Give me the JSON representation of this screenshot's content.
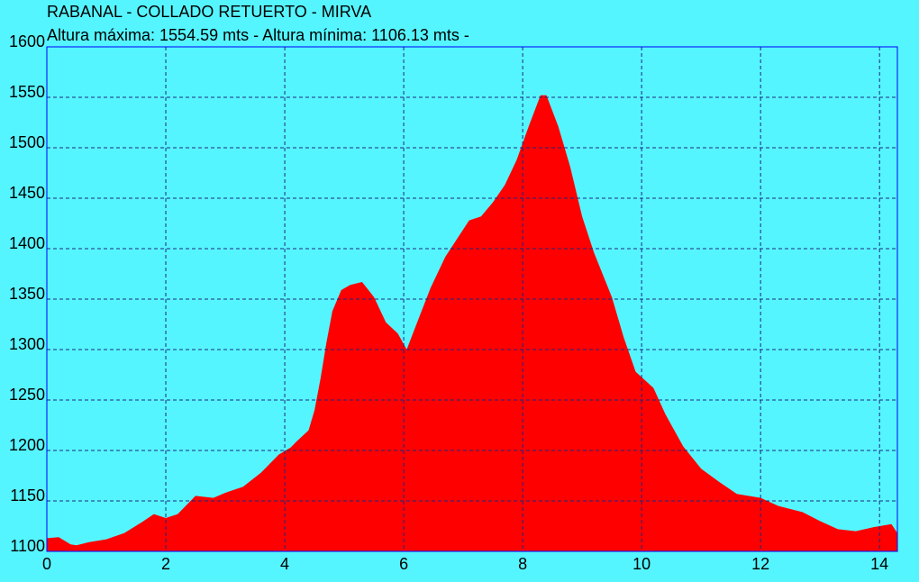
{
  "chart_data": {
    "type": "area",
    "title": "RABANAL - COLLADO RETUERTO - MIRVA",
    "subtitle": "Altura máxima: 1554.59 mts - Altura mínima: 1106.13 mts -",
    "x": [
      0,
      0.2,
      0.4,
      0.5,
      0.7,
      1.0,
      1.3,
      1.6,
      1.8,
      2.0,
      2.2,
      2.5,
      2.8,
      3.0,
      3.3,
      3.6,
      3.9,
      4.1,
      4.2,
      4.4,
      4.5,
      4.6,
      4.7,
      4.8,
      4.95,
      5.1,
      5.3,
      5.5,
      5.7,
      5.9,
      6.05,
      6.2,
      6.45,
      6.7,
      6.9,
      7.1,
      7.3,
      7.5,
      7.7,
      7.9,
      8.1,
      8.3,
      8.4,
      8.6,
      8.8,
      9.0,
      9.2,
      9.5,
      9.7,
      9.9,
      10.2,
      10.4,
      10.7,
      11.0,
      11.3,
      11.6,
      12.0,
      12.3,
      12.7,
      13.0,
      13.3,
      13.6,
      13.9,
      14.2,
      14.3
    ],
    "values": [
      1113,
      1114,
      1107,
      1106,
      1109,
      1112,
      1118,
      1129,
      1137,
      1133,
      1137,
      1155,
      1153,
      1158,
      1164,
      1178,
      1196,
      1203,
      1209,
      1220,
      1240,
      1271,
      1307,
      1338,
      1359,
      1364,
      1367,
      1352,
      1327,
      1316,
      1300,
      1323,
      1361,
      1392,
      1410,
      1428,
      1432,
      1446,
      1463,
      1488,
      1521,
      1552,
      1552,
      1521,
      1481,
      1432,
      1396,
      1352,
      1312,
      1278,
      1262,
      1236,
      1204,
      1182,
      1169,
      1157,
      1153,
      1145,
      1139,
      1130,
      1122,
      1120,
      1124,
      1127,
      1118
    ],
    "color": "#ff0000",
    "background": "#55f5ff",
    "xlim": [
      0,
      14.3
    ],
    "xticks": [
      0,
      2,
      4,
      6,
      8,
      10,
      12,
      14
    ],
    "ylim": [
      1100,
      1600
    ],
    "yticks": [
      1100,
      1150,
      1200,
      1250,
      1300,
      1350,
      1400,
      1450,
      1500,
      1550,
      1600
    ],
    "grid": true
  }
}
